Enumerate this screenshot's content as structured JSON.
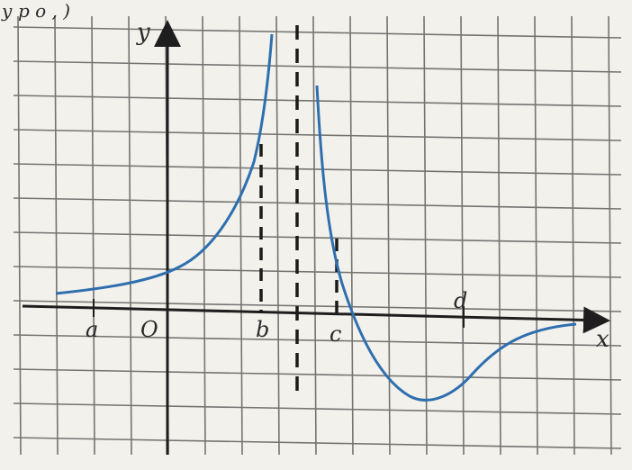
{
  "top_text": "у р о , )",
  "axes": {
    "x_label": "x",
    "y_label": "y",
    "origin_label": "O"
  },
  "points": {
    "a": "a",
    "b": "b",
    "c": "c",
    "d": "d"
  },
  "colors": {
    "paper": "#f2f1ec",
    "grid": "#4a4a4a",
    "axis": "#1e1e1e",
    "curve": "#2f6fae",
    "dashed": "#1a1a1a"
  }
}
